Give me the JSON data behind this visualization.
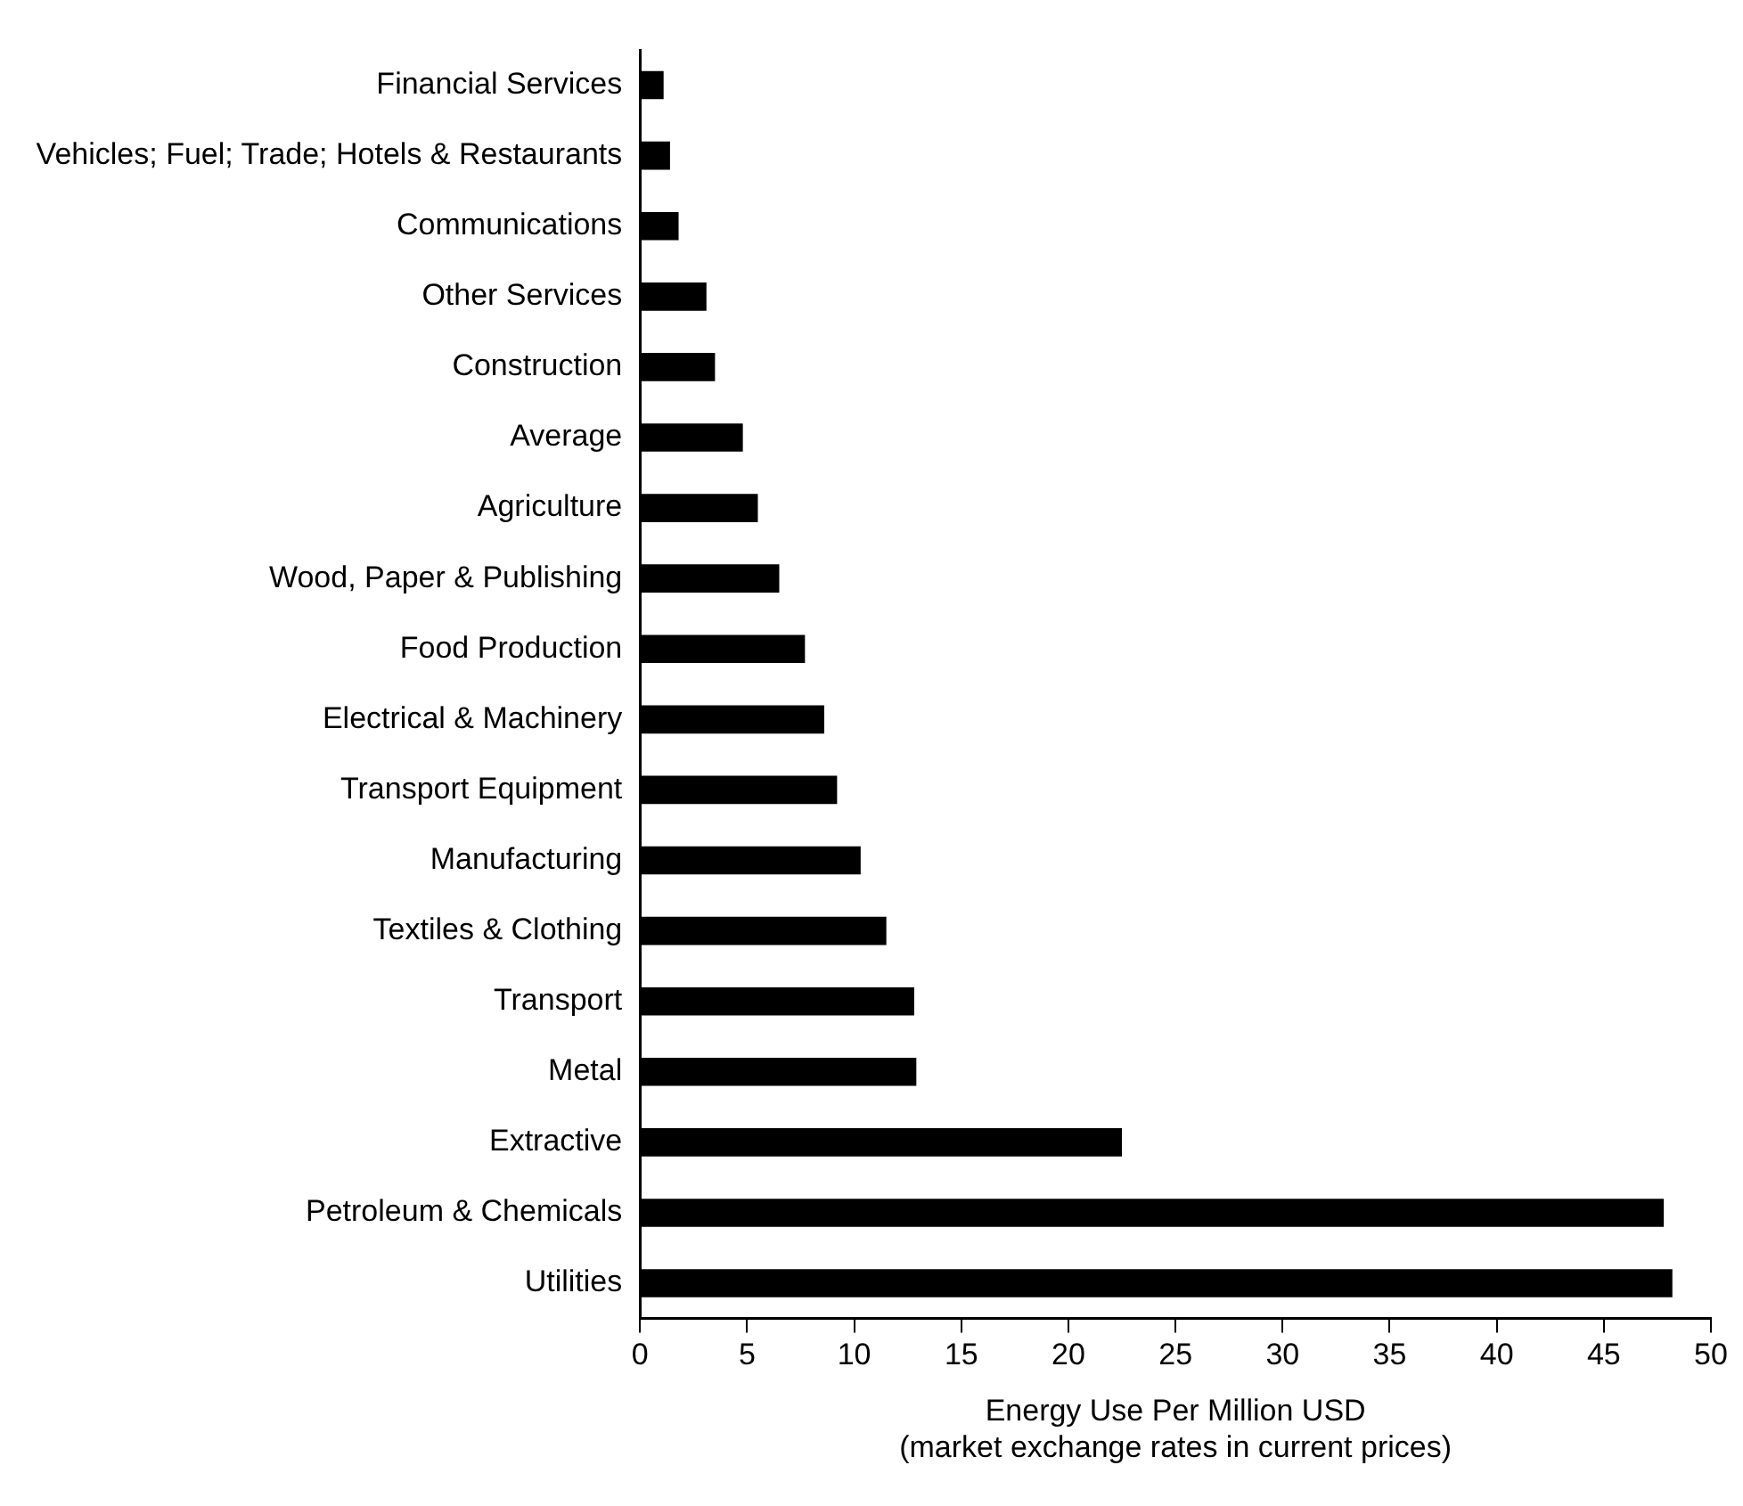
{
  "chart_data": {
    "type": "bar",
    "orientation": "horizontal",
    "categories": [
      "Financial Services",
      "Vehicles; Fuel; Trade; Hotels & Restaurants",
      "Communications",
      "Other Services",
      "Construction",
      "Average",
      "Agriculture",
      "Wood, Paper & Publishing",
      "Food Production",
      "Electrical & Machinery",
      "Transport Equipment",
      "Manufacturing",
      "Textiles & Clothing",
      "Transport",
      "Metal",
      "Extractive",
      "Petroleum & Chemicals",
      "Utilities"
    ],
    "values": [
      1.1,
      1.4,
      1.8,
      3.1,
      3.5,
      4.8,
      5.5,
      6.5,
      7.7,
      8.6,
      9.2,
      10.3,
      11.5,
      12.8,
      12.9,
      22.5,
      47.8,
      48.2
    ],
    "color": "#000000",
    "xlabel": "Energy Use Per Million USD\n(market exchange rates in current prices)",
    "xlim": [
      0,
      50
    ],
    "xticks": [
      0,
      5,
      10,
      15,
      20,
      25,
      30,
      35,
      40,
      45,
      50
    ],
    "grid": false,
    "legend": false
  }
}
